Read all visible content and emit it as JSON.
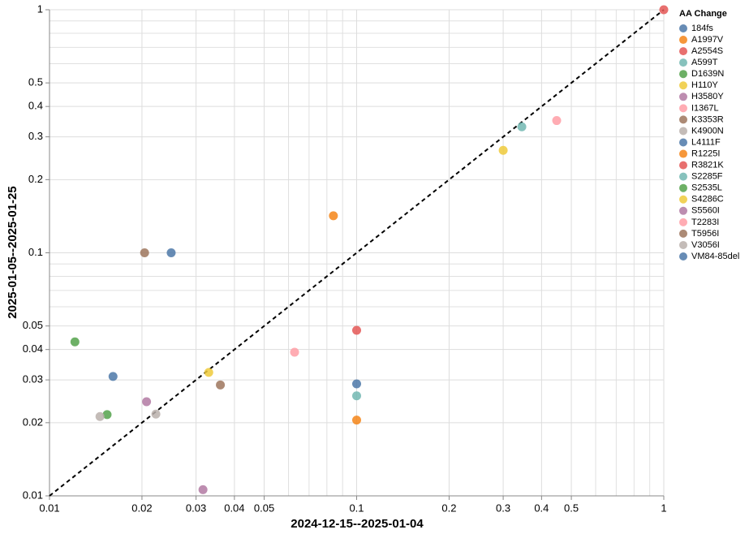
{
  "chart_data": {
    "type": "scatter",
    "log_scale": true,
    "grid": true,
    "x_label": "2024-12-15--2025-01-04",
    "y_label": "2025-01-05--2025-01-25",
    "legend_title": "AA Change",
    "legend_position": "right",
    "xlim": [
      0.01,
      1
    ],
    "ylim": [
      0.01,
      1
    ],
    "xticks": [
      0.01,
      0.02,
      0.03,
      0.04,
      0.05,
      0.1,
      0.2,
      0.3,
      0.4,
      0.5,
      1
    ],
    "yticks": [
      0.01,
      0.02,
      0.03,
      0.04,
      0.05,
      0.1,
      0.2,
      0.3,
      0.4,
      0.5,
      1
    ],
    "minor_ticks": [
      0.06,
      0.07,
      0.08,
      0.09,
      0.6,
      0.7,
      0.8,
      0.9
    ],
    "series": [
      {
        "name": "184fs",
        "color": "#4c78a8",
        "x": [
          0.0249
        ],
        "values": [
          0.1
        ]
      },
      {
        "name": "A1997V",
        "color": "#f58518",
        "x": [
          0.084
        ],
        "values": [
          0.142
        ]
      },
      {
        "name": "A2554S",
        "color": "#e45756",
        "x": [
          1
        ],
        "values": [
          1
        ]
      },
      {
        "name": "A599T",
        "color": "#72b7b2",
        "x": [
          0.345
        ],
        "values": [
          0.33
        ]
      },
      {
        "name": "D1639N",
        "color": "#54a24b",
        "x": [
          0.0121
        ],
        "values": [
          0.043
        ]
      },
      {
        "name": "H110Y",
        "color": "#eeca3b",
        "x": [
          0.3
        ],
        "values": [
          0.264
        ]
      },
      {
        "name": "H3580Y",
        "color": "#b279a2",
        "x": [
          0.0207
        ],
        "values": [
          0.0244
        ]
      },
      {
        "name": "I1367L",
        "color": "#ff9da6",
        "x": [
          0.448
        ],
        "values": [
          0.35
        ]
      },
      {
        "name": "K3353R",
        "color": "#9d755d",
        "x": [
          0.0204
        ],
        "values": [
          0.1
        ]
      },
      {
        "name": "K4900N",
        "color": "#bab0ac",
        "x": [
          0.0222
        ],
        "values": [
          0.0217
        ]
      },
      {
        "name": "L4111F",
        "color": "#4c78a8",
        "x": [
          0.0161
        ],
        "values": [
          0.031
        ]
      },
      {
        "name": "R1225I",
        "color": "#f58518",
        "x": [
          0.1
        ],
        "values": [
          0.0205
        ]
      },
      {
        "name": "R3821K",
        "color": "#e45756",
        "x": [
          0.1
        ],
        "values": [
          0.048
        ]
      },
      {
        "name": "S2285F",
        "color": "#72b7b2",
        "x": [
          0.1
        ],
        "values": [
          0.0258
        ]
      },
      {
        "name": "S2535L",
        "color": "#54a24b",
        "x": [
          0.0154
        ],
        "values": [
          0.0216
        ]
      },
      {
        "name": "S4286C",
        "color": "#eeca3b",
        "x": [
          0.033
        ],
        "values": [
          0.0322
        ]
      },
      {
        "name": "S5560I",
        "color": "#b279a2",
        "x": [
          0.0316
        ],
        "values": [
          0.0106
        ]
      },
      {
        "name": "T2283I",
        "color": "#ff9da6",
        "x": [
          0.0628
        ],
        "values": [
          0.039
        ]
      },
      {
        "name": "T5956I",
        "color": "#9d755d",
        "x": [
          0.036
        ],
        "values": [
          0.0286
        ]
      },
      {
        "name": "V3056I",
        "color": "#bab0ac",
        "x": [
          0.0146
        ],
        "values": [
          0.0212
        ]
      },
      {
        "name": "VM84-85del",
        "color": "#4c78a8",
        "x": [
          0.1
        ],
        "values": [
          0.0289
        ]
      }
    ]
  }
}
